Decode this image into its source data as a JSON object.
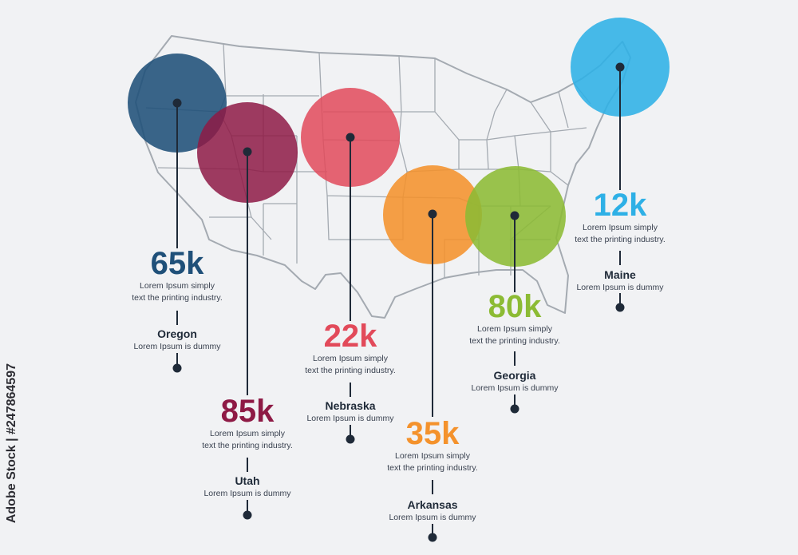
{
  "page": {
    "watermark": "Adobe Stock | #247864597"
  },
  "markers": [
    {
      "id": "oregon",
      "state": "Oregon",
      "value": "65k",
      "desc_line1": "Lorem Ipsum simply",
      "desc_line2": "text the printing industry.",
      "sub": "Lorem Ipsum is dummy",
      "color": "#1f5079"
    },
    {
      "id": "utah",
      "state": "Utah",
      "value": "85k",
      "desc_line1": "Lorem Ipsum simply",
      "desc_line2": "text the printing industry.",
      "sub": "Lorem Ipsum is dummy",
      "color": "#8e1a45"
    },
    {
      "id": "nebraska",
      "state": "Nebraska",
      "value": "22k",
      "desc_line1": "Lorem Ipsum simply",
      "desc_line2": "text the printing industry.",
      "sub": "Lorem Ipsum is dummy",
      "color": "#e24a5a"
    },
    {
      "id": "arkansas",
      "state": "Arkansas",
      "value": "35k",
      "desc_line1": "Lorem Ipsum simply",
      "desc_line2": "text the printing industry.",
      "sub": "Lorem Ipsum is dummy",
      "color": "#f4922c"
    },
    {
      "id": "georgia",
      "state": "Georgia",
      "value": "80k",
      "desc_line1": "Lorem Ipsum simply",
      "desc_line2": "text the printing industry.",
      "sub": "Lorem Ipsum is dummy",
      "color": "#8cbb34"
    },
    {
      "id": "maine",
      "state": "Maine",
      "value": "12k",
      "desc_line1": "Lorem Ipsum simply",
      "desc_line2": "text the printing industry.",
      "sub": "Lorem Ipsum is dummy",
      "color": "#2eb0e6"
    }
  ],
  "colors": {
    "map_outline": "#a4aab1",
    "line": "#1f2a38",
    "background": "#f1f2f4"
  }
}
